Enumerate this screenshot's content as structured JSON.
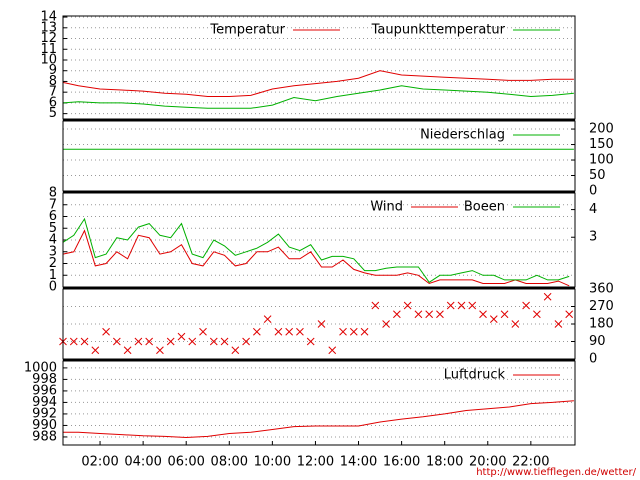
{
  "chart_data": [
    {
      "type": "line",
      "y_axis": "left",
      "x": [
        0.3,
        1,
        2,
        3,
        4,
        5,
        6,
        7,
        8,
        9,
        10,
        11,
        12,
        13,
        14,
        15,
        16,
        17,
        18,
        19,
        20,
        21,
        22,
        23,
        24
      ],
      "series": [
        {
          "name": "Temperatur",
          "color": "#e00000",
          "values": [
            7.9,
            7.6,
            7.3,
            7.2,
            7.1,
            6.9,
            6.8,
            6.6,
            6.6,
            6.7,
            7.3,
            7.6,
            7.8,
            8.0,
            8.3,
            9.0,
            8.6,
            8.5,
            8.4,
            8.3,
            8.2,
            8.1,
            8.1,
            8.2,
            8.2
          ]
        },
        {
          "name": "Taupunkttemperatur",
          "color": "#00b000",
          "values": [
            6.0,
            6.1,
            6.0,
            6.0,
            5.9,
            5.7,
            5.6,
            5.5,
            5.5,
            5.5,
            5.8,
            6.5,
            6.2,
            6.6,
            6.9,
            7.2,
            7.6,
            7.3,
            7.2,
            7.1,
            7.0,
            6.8,
            6.6,
            6.7,
            6.9
          ]
        }
      ],
      "xlim": [
        0.28,
        24.05
      ],
      "ylim": [
        4.5,
        14.1
      ],
      "yticks": [
        5,
        6,
        7,
        8,
        9,
        10,
        11,
        12,
        13,
        14
      ],
      "grid": true
    },
    {
      "type": "line",
      "y_axis": "right",
      "x": [
        0.3,
        24
      ],
      "series": [
        {
          "name": "Niederschlag",
          "color": "#00b000",
          "values": [
            135,
            135
          ]
        }
      ],
      "xlim": [
        0.28,
        24.05
      ],
      "ylim": [
        0,
        226
      ],
      "yticks": [
        0,
        50,
        100,
        150,
        200
      ],
      "grid": true
    },
    {
      "type": "line",
      "y_axis": "left",
      "x": [
        0.28,
        0.78,
        1.28,
        1.78,
        2.28,
        2.78,
        3.28,
        3.78,
        4.28,
        4.78,
        5.28,
        5.78,
        6.28,
        6.78,
        7.28,
        7.78,
        8.28,
        8.78,
        9.28,
        9.78,
        10.28,
        10.78,
        11.28,
        11.78,
        12.28,
        12.78,
        13.28,
        13.78,
        14.28,
        14.78,
        15.28,
        15.78,
        16.28,
        16.78,
        17.28,
        17.78,
        18.28,
        18.78,
        19.28,
        19.78,
        20.28,
        20.78,
        21.28,
        21.78,
        22.28,
        22.78,
        23.28,
        23.78
      ],
      "series": [
        {
          "name": "Wind",
          "color": "#e00000",
          "values": [
            2.8,
            3.0,
            4.8,
            1.8,
            2.0,
            3.0,
            2.4,
            4.4,
            4.2,
            2.8,
            3.0,
            3.6,
            2.0,
            1.8,
            3.0,
            2.7,
            1.8,
            2.0,
            3.0,
            3.0,
            3.4,
            2.4,
            2.4,
            3.0,
            1.7,
            1.7,
            2.3,
            1.5,
            1.2,
            1.0,
            1.0,
            1.0,
            1.2,
            1.0,
            0.3,
            0.6,
            0.6,
            0.6,
            0.6,
            0.3,
            0.3,
            0.3,
            0.6,
            0.3,
            0.3,
            0.3,
            0.5,
            0.1
          ]
        },
        {
          "name": "Boeen",
          "color": "#00b000",
          "values": [
            3.8,
            4.4,
            5.8,
            2.5,
            2.8,
            4.2,
            4.0,
            5.1,
            5.4,
            4.4,
            4.2,
            5.4,
            2.8,
            2.5,
            4.0,
            3.5,
            2.7,
            3.0,
            3.3,
            3.8,
            4.5,
            3.4,
            3.1,
            3.6,
            2.3,
            2.6,
            2.6,
            2.4,
            1.4,
            1.4,
            1.6,
            1.7,
            1.7,
            1.7,
            0.4,
            1.0,
            1.0,
            1.2,
            1.4,
            1.0,
            1.0,
            0.6,
            0.6,
            0.6,
            1.0,
            0.6,
            0.6,
            0.9
          ]
        }
      ],
      "xlim": [
        0.28,
        24.05
      ],
      "ylim": [
        0,
        8
      ],
      "yticks": [
        0,
        1,
        2,
        3,
        4,
        5,
        6,
        7,
        8
      ],
      "y2lim": [
        1.2,
        4.6
      ],
      "y2ticks": [
        3,
        4
      ],
      "grid": true
    },
    {
      "type": "scatter",
      "y_axis": "right",
      "color": "#e00000",
      "x": [
        0.28,
        0.78,
        1.28,
        1.78,
        2.28,
        2.78,
        3.28,
        3.78,
        4.28,
        4.78,
        5.28,
        5.78,
        6.28,
        6.78,
        7.28,
        7.78,
        8.28,
        8.78,
        9.28,
        9.78,
        10.28,
        10.78,
        11.28,
        11.78,
        12.28,
        12.78,
        13.28,
        13.78,
        14.28,
        14.78,
        15.28,
        15.78,
        16.28,
        16.78,
        17.28,
        17.78,
        18.28,
        18.78,
        19.28,
        19.78,
        20.28,
        20.78,
        21.28,
        21.78,
        22.28,
        22.78,
        23.28,
        23.78
      ],
      "values": [
        90,
        90,
        90,
        45,
        140,
        90,
        45,
        90,
        90,
        45,
        90,
        115,
        90,
        140,
        90,
        90,
        45,
        90,
        140,
        205,
        140,
        140,
        140,
        90,
        180,
        45,
        140,
        140,
        140,
        275,
        180,
        230,
        275,
        230,
        230,
        230,
        275,
        275,
        275,
        230,
        205,
        230,
        180,
        275,
        230,
        320,
        180,
        230
      ],
      "xlim": [
        0.28,
        24.05
      ],
      "ylim": [
        0,
        360
      ],
      "yticks": [
        0,
        90,
        180,
        270,
        360
      ],
      "grid": true
    },
    {
      "type": "line",
      "y_axis": "left",
      "x": [
        0.3,
        1,
        2,
        3,
        4,
        5,
        6,
        7,
        8,
        9,
        10,
        11,
        12,
        13,
        14,
        15,
        16,
        17,
        18,
        19,
        20,
        21,
        22,
        23,
        24
      ],
      "series": [
        {
          "name": "Luftdruck",
          "color": "#e00000",
          "values": [
            988.8,
            988.8,
            988.6,
            988.4,
            988.2,
            988.1,
            987.9,
            988.1,
            988.6,
            988.8,
            989.3,
            989.8,
            989.9,
            989.9,
            989.9,
            990.6,
            991.1,
            991.5,
            992.0,
            992.6,
            992.9,
            993.2,
            993.8,
            994.0,
            994.3
          ]
        }
      ],
      "xlim": [
        0.28,
        24.05
      ],
      "ylim": [
        986.6,
        1001.2
      ],
      "yticks": [
        988,
        990,
        992,
        994,
        996,
        998,
        1000
      ],
      "grid": true,
      "xticks": [
        {
          "value": 2,
          "label": "02:00"
        },
        {
          "value": 4,
          "label": "04:00"
        },
        {
          "value": 6,
          "label": "06:00"
        },
        {
          "value": 8,
          "label": "08:00"
        },
        {
          "value": 10,
          "label": "10:00"
        },
        {
          "value": 12,
          "label": "12:00"
        },
        {
          "value": 14,
          "label": "14:00"
        },
        {
          "value": 16,
          "label": "16:00"
        },
        {
          "value": 18,
          "label": "18:00"
        },
        {
          "value": 20,
          "label": "20:00"
        },
        {
          "value": 22,
          "label": "22:00"
        }
      ],
      "source": "http://www.tiefflegen.de/wetter/"
    }
  ]
}
